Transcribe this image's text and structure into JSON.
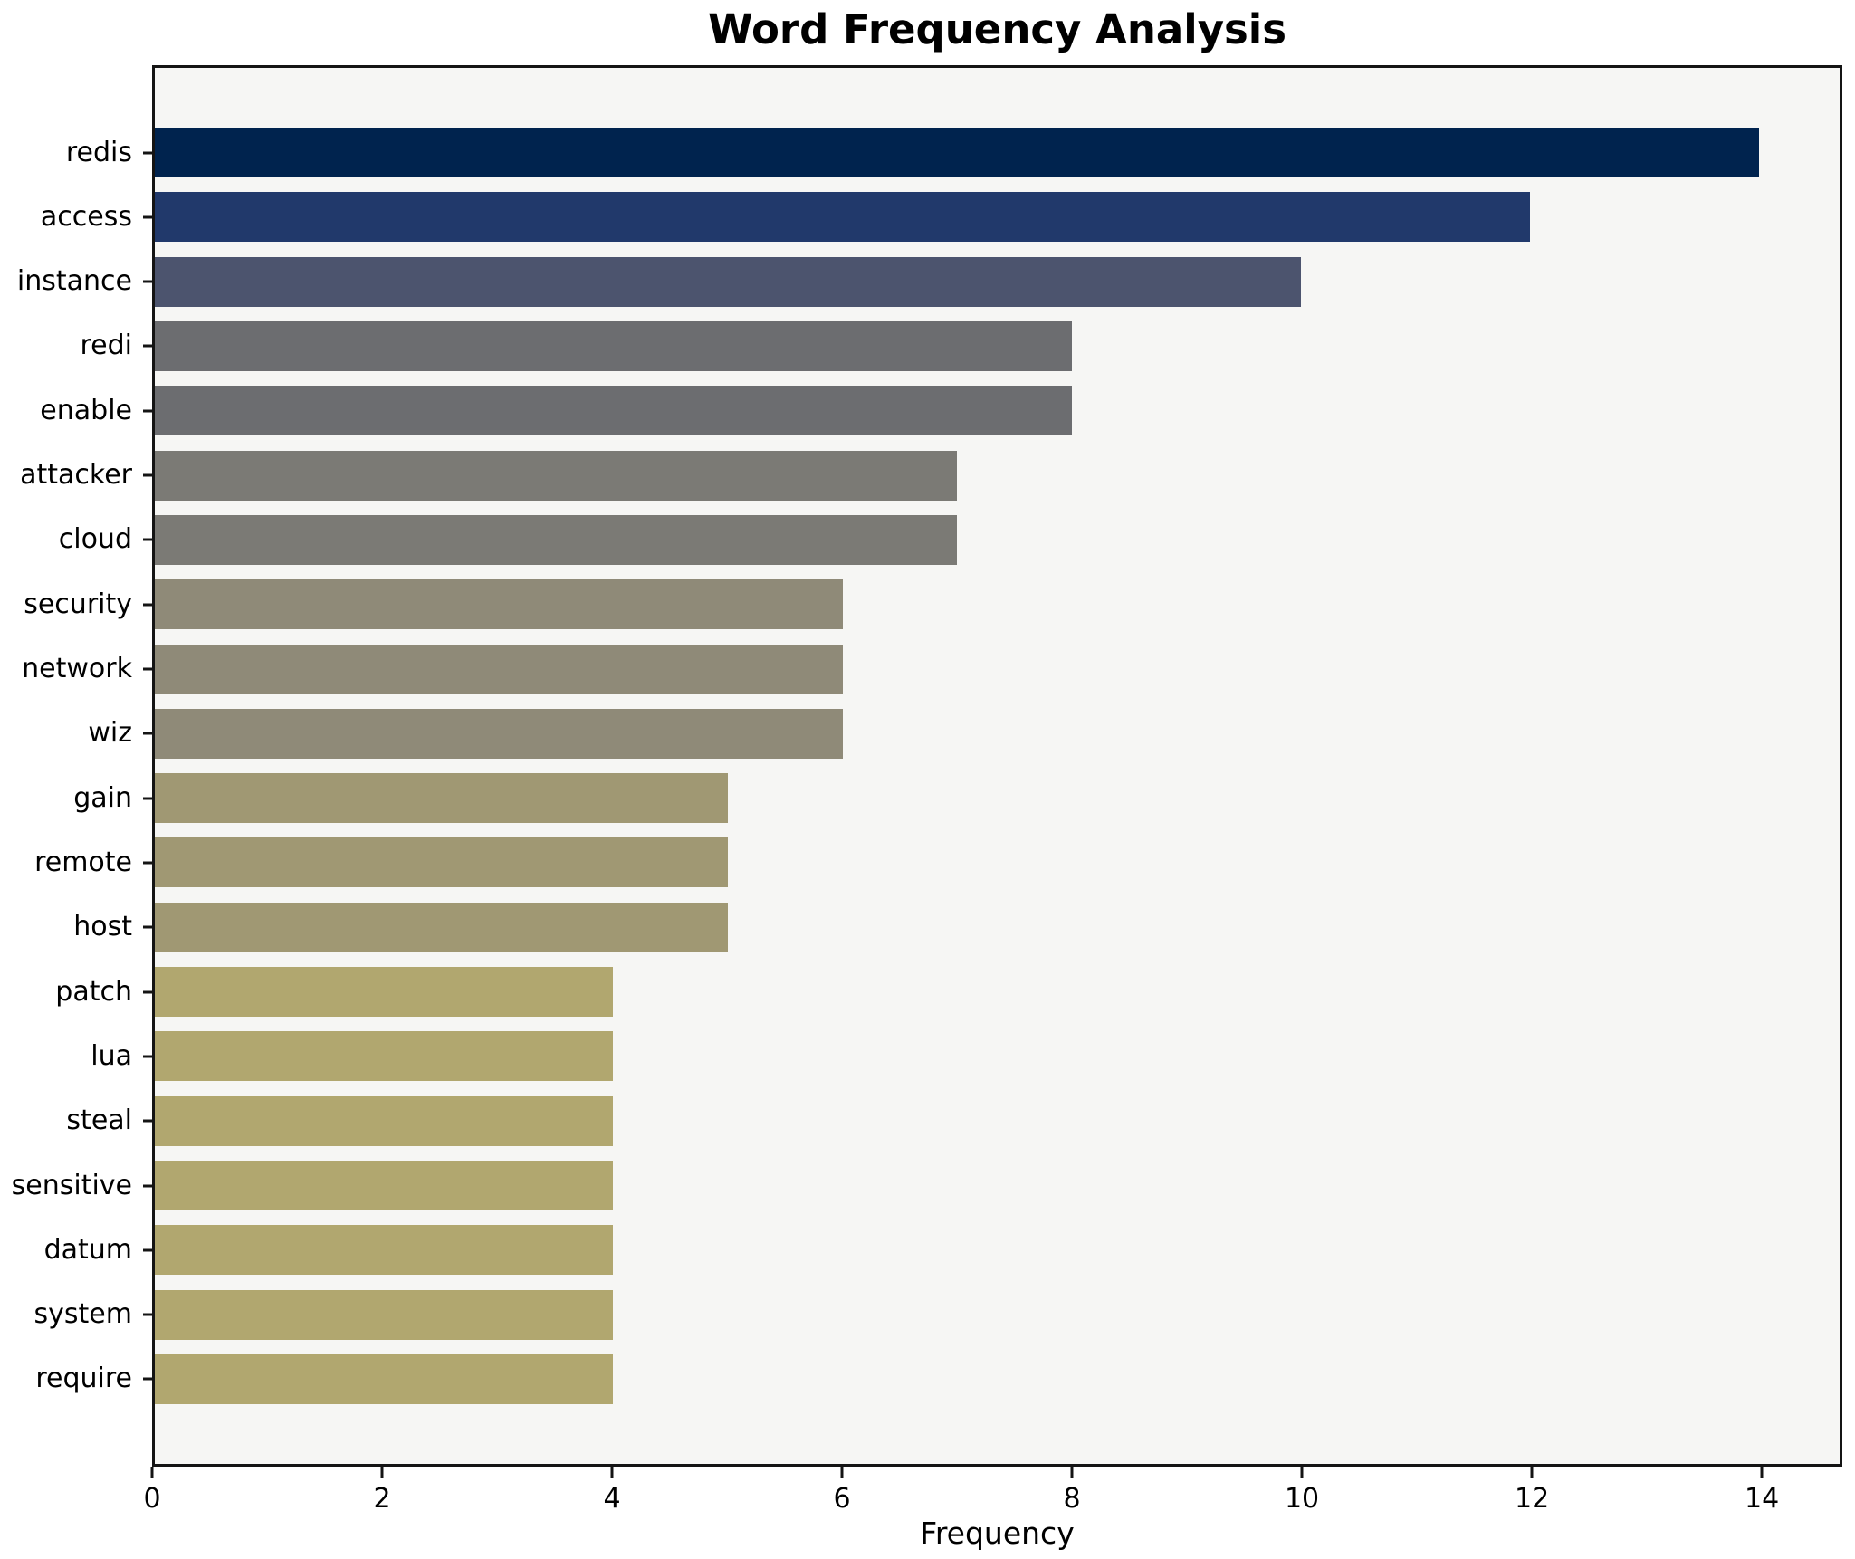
{
  "chart_data": {
    "type": "bar",
    "orientation": "horizontal",
    "title": "Word Frequency Analysis",
    "xlabel": "Frequency",
    "ylabel": "",
    "categories": [
      "redis",
      "access",
      "instance",
      "redi",
      "enable",
      "attacker",
      "cloud",
      "security",
      "network",
      "wiz",
      "gain",
      "remote",
      "host",
      "patch",
      "lua",
      "steal",
      "sensitive",
      "datum",
      "system",
      "require"
    ],
    "values": [
      14,
      12,
      10,
      8,
      8,
      7,
      7,
      6,
      6,
      6,
      5,
      5,
      5,
      4,
      4,
      4,
      4,
      4,
      4,
      4
    ],
    "bar_colors": [
      "#00234e",
      "#21396b",
      "#4c546e",
      "#6c6d70",
      "#6c6d70",
      "#7b7a75",
      "#7b7a75",
      "#8f8a78",
      "#8f8a78",
      "#8f8a78",
      "#a09873",
      "#a09873",
      "#a09873",
      "#b1a76f",
      "#b1a76f",
      "#b1a76f",
      "#b1a76f",
      "#b1a76f",
      "#b1a76f",
      "#b1a76f"
    ],
    "x_ticks": [
      0,
      2,
      4,
      6,
      8,
      10,
      12,
      14
    ],
    "xlim": [
      0,
      14.7
    ],
    "grid": false,
    "legend": false,
    "colors": {
      "figure_background": "#ffffff",
      "plot_background": "#f6f6f4",
      "axis": "#141414",
      "text": "#000000"
    }
  }
}
